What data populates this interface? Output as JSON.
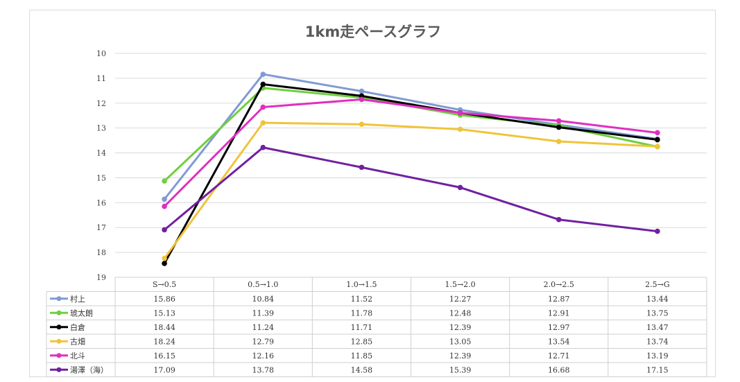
{
  "chart_data": {
    "type": "line",
    "title": "1km走ペースグラフ",
    "categories": [
      "S→0.5",
      "0.5→1.0",
      "1.0→1.5",
      "1.5→2.0",
      "2.0→2.5",
      "2.5→G"
    ],
    "y_ticks": [
      "10",
      "11",
      "12",
      "13",
      "14",
      "15",
      "16",
      "17",
      "18",
      "19"
    ],
    "ylim": [
      10,
      19
    ],
    "y_reversed": true,
    "grid": true,
    "data_table": true,
    "series": [
      {
        "name": "村上",
        "color": "#7f9bd3",
        "values": [
          15.86,
          10.84,
          11.52,
          12.27,
          12.87,
          13.44
        ],
        "labels": [
          "15.86",
          "10.84",
          "11.52",
          "12.27",
          "12.87",
          "13.44"
        ]
      },
      {
        "name": "琥太朗",
        "color": "#6fcf3f",
        "values": [
          15.13,
          11.39,
          11.78,
          12.48,
          12.91,
          13.75
        ],
        "labels": [
          "15.13",
          "11.39",
          "11.78",
          "12.48",
          "12.91",
          "13.75"
        ]
      },
      {
        "name": "白倉",
        "color": "#000000",
        "values": [
          18.44,
          11.24,
          11.71,
          12.39,
          12.97,
          13.47
        ],
        "labels": [
          "18.44",
          "11.24",
          "11.71",
          "12.39",
          "12.97",
          "13.47"
        ]
      },
      {
        "name": "古畑",
        "color": "#f0c43a",
        "values": [
          18.24,
          12.79,
          12.85,
          13.05,
          13.54,
          13.74
        ],
        "labels": [
          "18.24",
          "12.79",
          "12.85",
          "13.05",
          "13.54",
          "13.74"
        ]
      },
      {
        "name": "北斗",
        "color": "#e02fc0",
        "values": [
          16.15,
          12.16,
          11.85,
          12.39,
          12.71,
          13.19
        ],
        "labels": [
          "16.15",
          "12.16",
          "11.85",
          "12.39",
          "12.71",
          "13.19"
        ]
      },
      {
        "name": "湯澤（海）",
        "color": "#7020a0",
        "values": [
          17.09,
          13.78,
          14.58,
          15.39,
          16.68,
          17.15
        ],
        "labels": [
          "17.09",
          "13.78",
          "14.58",
          "15.39",
          "16.68",
          "17.15"
        ]
      }
    ]
  }
}
